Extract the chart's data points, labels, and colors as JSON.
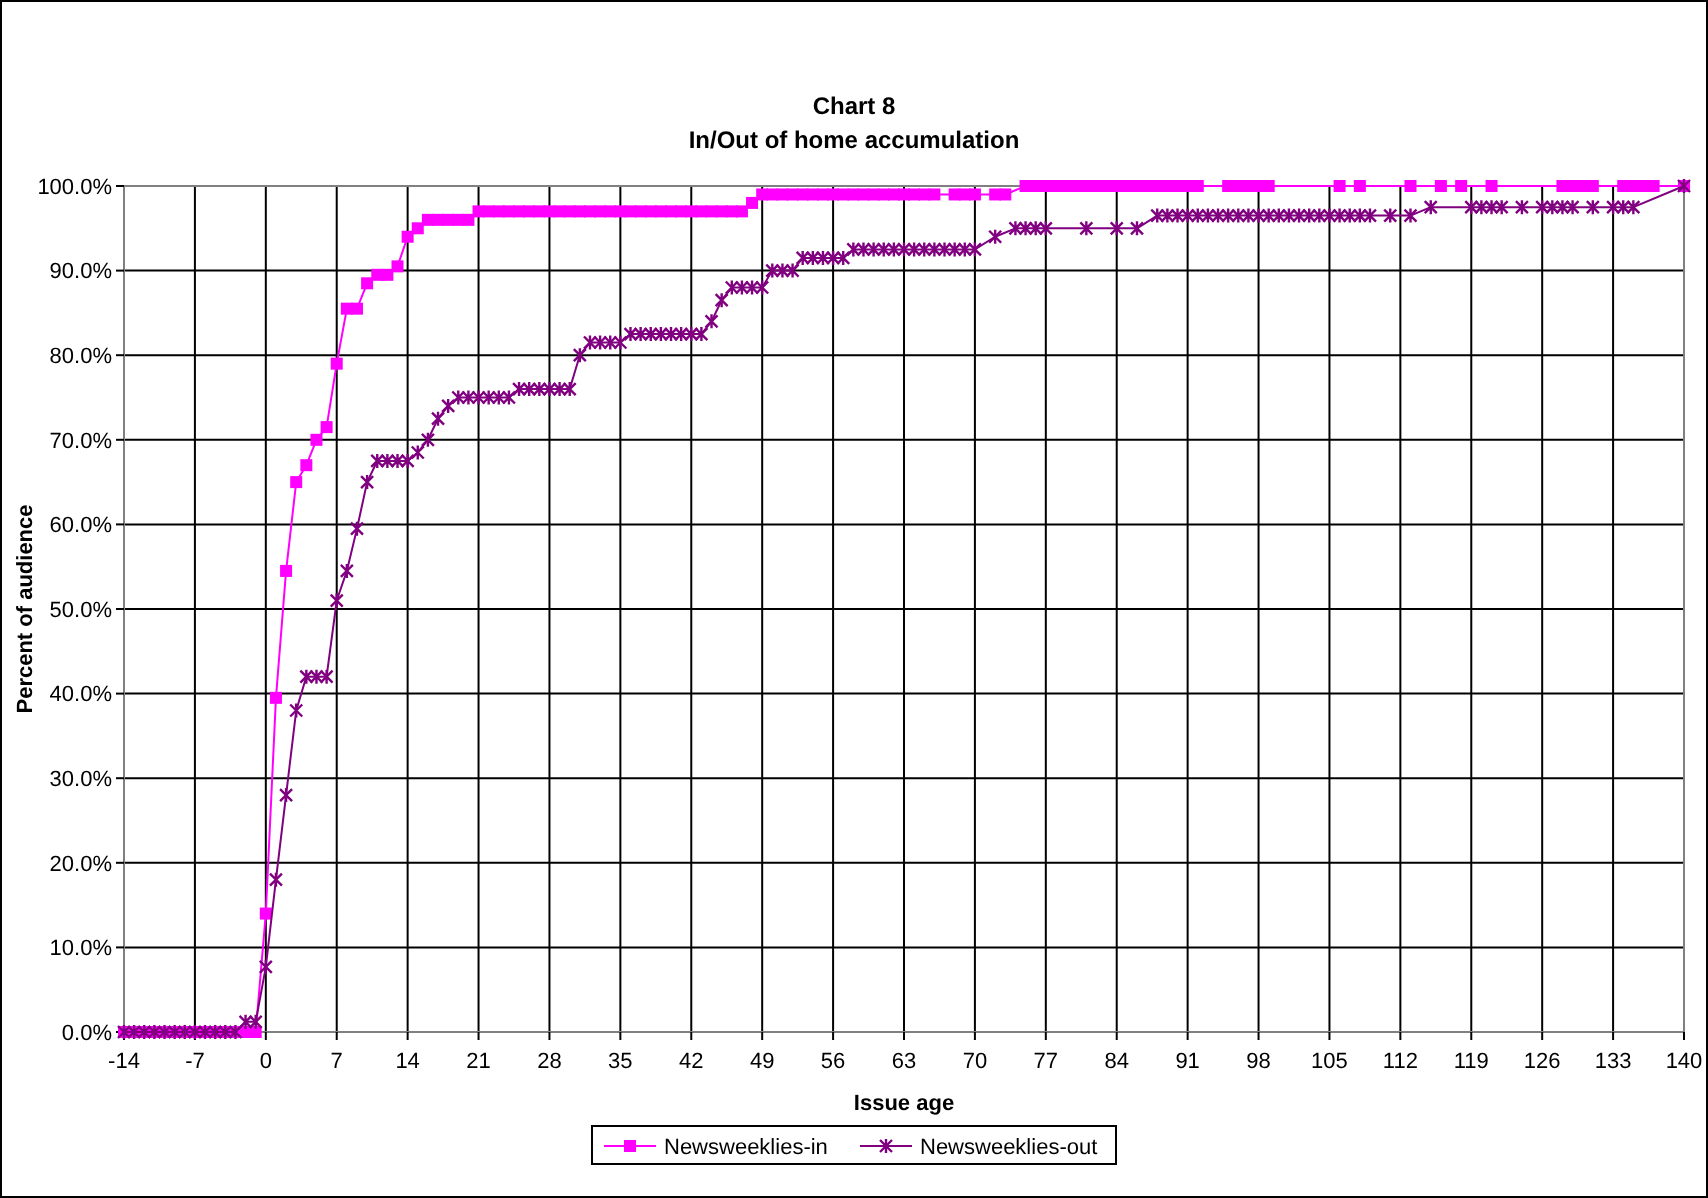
{
  "chart_data": {
    "type": "line",
    "title": "Chart 8",
    "subtitle": "In/Out of home accumulation",
    "xlabel": "Issue age",
    "ylabel": "Percent of audience",
    "xlim": [
      -14,
      140
    ],
    "xticks": [
      -14,
      -7,
      0,
      7,
      14,
      21,
      28,
      35,
      42,
      49,
      56,
      63,
      70,
      77,
      84,
      91,
      98,
      105,
      112,
      119,
      126,
      133,
      140
    ],
    "ylim": [
      0,
      100
    ],
    "yticks": [
      {
        "value": 0,
        "label": "0.0%"
      },
      {
        "value": 10,
        "label": "10.0%"
      },
      {
        "value": 20,
        "label": "20.0%"
      },
      {
        "value": 30,
        "label": "30.0%"
      },
      {
        "value": 40,
        "label": "40.0%"
      },
      {
        "value": 50,
        "label": "50.0%"
      },
      {
        "value": 60,
        "label": "60.0%"
      },
      {
        "value": 70,
        "label": "70.0%"
      },
      {
        "value": 80,
        "label": "80.0%"
      },
      {
        "value": 90,
        "label": "90.0%"
      },
      {
        "value": 100,
        "label": "100.0%"
      }
    ],
    "grid": true,
    "legend": "bottom",
    "series": [
      {
        "name": "Newsweeklies-in",
        "color": "#ff00ff",
        "marker": "square",
        "x": [
          -14,
          -13,
          -12,
          -11,
          -10,
          -9,
          -8,
          -7,
          -6,
          -5,
          -4,
          -3,
          -2,
          -1,
          0,
          1,
          2,
          3,
          4,
          5,
          6,
          7,
          8,
          9,
          10,
          11,
          12,
          13,
          14,
          15,
          16,
          17,
          18,
          19,
          20,
          21,
          22,
          23,
          24,
          25,
          26,
          27,
          28,
          29,
          30,
          31,
          32,
          33,
          34,
          35,
          36,
          37,
          38,
          39,
          40,
          41,
          42,
          43,
          44,
          45,
          46,
          47,
          48,
          49,
          50,
          51,
          52,
          53,
          54,
          55,
          56,
          57,
          58,
          59,
          60,
          61,
          62,
          63,
          64,
          65,
          66,
          68,
          69,
          70,
          72,
          73,
          75,
          76,
          77,
          78,
          79,
          80,
          81,
          82,
          83,
          84,
          85,
          86,
          87,
          88,
          89,
          90,
          91,
          92,
          95,
          96,
          97,
          98,
          99,
          106,
          108,
          113,
          116,
          118,
          121,
          128,
          129,
          130,
          131,
          134,
          135,
          136,
          137,
          140
        ],
        "values": [
          0,
          0,
          0,
          0,
          0,
          0,
          0,
          0,
          0,
          0,
          0,
          0,
          0,
          0,
          14,
          39.5,
          54.5,
          65,
          67,
          70,
          71.5,
          79,
          85.5,
          85.5,
          88.5,
          89.5,
          89.5,
          90.5,
          94,
          95,
          96,
          96,
          96,
          96,
          96,
          97,
          97,
          97,
          97,
          97,
          97,
          97,
          97,
          97,
          97,
          97,
          97,
          97,
          97,
          97,
          97,
          97,
          97,
          97,
          97,
          97,
          97,
          97,
          97,
          97,
          97,
          97,
          98,
          99,
          99,
          99,
          99,
          99,
          99,
          99,
          99,
          99,
          99,
          99,
          99,
          99,
          99,
          99,
          99,
          99,
          99,
          99,
          99,
          99,
          99,
          99,
          100,
          100,
          100,
          100,
          100,
          100,
          100,
          100,
          100,
          100,
          100,
          100,
          100,
          100,
          100,
          100,
          100,
          100,
          100,
          100,
          100,
          100,
          100,
          100,
          100,
          100,
          100,
          100,
          100,
          100,
          100,
          100,
          100,
          100,
          100,
          100,
          100,
          100
        ]
      },
      {
        "name": "Newsweeklies-out",
        "color": "#800080",
        "marker": "cross",
        "x": [
          -14,
          -13,
          -12,
          -11,
          -10,
          -9,
          -8,
          -7,
          -6,
          -5,
          -4,
          -3,
          -2,
          -1,
          0,
          1,
          2,
          3,
          4,
          5,
          6,
          7,
          8,
          9,
          10,
          11,
          12,
          13,
          14,
          15,
          16,
          17,
          18,
          19,
          20,
          21,
          22,
          23,
          24,
          25,
          26,
          27,
          28,
          29,
          30,
          31,
          32,
          33,
          34,
          35,
          36,
          37,
          38,
          39,
          40,
          41,
          42,
          43,
          44,
          45,
          46,
          47,
          48,
          49,
          50,
          51,
          52,
          53,
          54,
          55,
          56,
          57,
          58,
          59,
          60,
          61,
          62,
          63,
          64,
          65,
          66,
          67,
          68,
          69,
          70,
          72,
          74,
          75,
          76,
          77,
          81,
          84,
          86,
          88,
          89,
          90,
          91,
          92,
          93,
          94,
          95,
          96,
          97,
          98,
          99,
          100,
          101,
          102,
          103,
          104,
          105,
          106,
          107,
          108,
          109,
          111,
          113,
          115,
          119,
          120,
          121,
          122,
          124,
          126,
          127,
          128,
          129,
          131,
          133,
          134,
          135,
          140
        ],
        "values": [
          0,
          0,
          0,
          0,
          0,
          0,
          0,
          0,
          0,
          0,
          0,
          0,
          1.2,
          1.2,
          7.7,
          18,
          28,
          38,
          42,
          42,
          42,
          51,
          54.5,
          59.5,
          65,
          67.5,
          67.5,
          67.5,
          67.5,
          68.5,
          70,
          72.5,
          74,
          75,
          75,
          75,
          75,
          75,
          75,
          76,
          76,
          76,
          76,
          76,
          76,
          80,
          81.5,
          81.5,
          81.5,
          81.5,
          82.5,
          82.5,
          82.5,
          82.5,
          82.5,
          82.5,
          82.5,
          82.5,
          84,
          86.5,
          88,
          88,
          88,
          88,
          90,
          90,
          90,
          91.5,
          91.5,
          91.5,
          91.5,
          91.5,
          92.5,
          92.5,
          92.5,
          92.5,
          92.5,
          92.5,
          92.5,
          92.5,
          92.5,
          92.5,
          92.5,
          92.5,
          92.5,
          94,
          95,
          95,
          95,
          95,
          95,
          95,
          95,
          96.5,
          96.5,
          96.5,
          96.5,
          96.5,
          96.5,
          96.5,
          96.5,
          96.5,
          96.5,
          96.5,
          96.5,
          96.5,
          96.5,
          96.5,
          96.5,
          96.5,
          96.5,
          96.5,
          96.5,
          96.5,
          96.5,
          96.5,
          96.5,
          97.5,
          97.5,
          97.5,
          97.5,
          97.5,
          97.5,
          97.5,
          97.5,
          97.5,
          97.5,
          97.5,
          97.5,
          97.5,
          97.5,
          100
        ]
      }
    ]
  }
}
